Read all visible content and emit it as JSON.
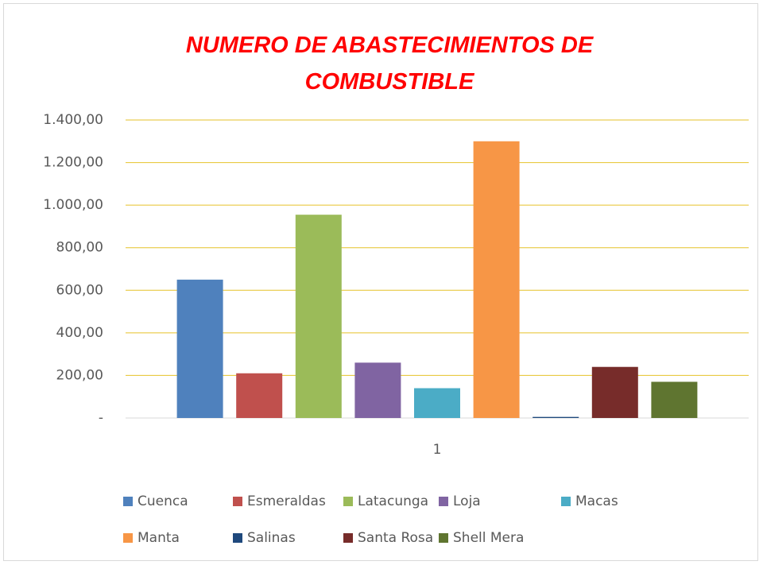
{
  "chart_data": {
    "type": "bar",
    "title": "NUMERO DE ABASTECIMIENTOS DE COMBUSTIBLE",
    "categories": [
      "1"
    ],
    "series": [
      {
        "name": "Cuenca",
        "color": "#4f81bd",
        "values": [
          650
        ]
      },
      {
        "name": "Esmeraldas",
        "color": "#c0504d",
        "values": [
          210
        ]
      },
      {
        "name": "Latacunga",
        "color": "#9bbb59",
        "values": [
          955
        ]
      },
      {
        "name": "Loja",
        "color": "#8064a2",
        "values": [
          260
        ]
      },
      {
        "name": "Macas",
        "color": "#4bacc6",
        "values": [
          140
        ]
      },
      {
        "name": "Manta",
        "color": "#f79646",
        "values": [
          1300
        ]
      },
      {
        "name": "Salinas",
        "color": "#1f497d",
        "values": [
          5
        ]
      },
      {
        "name": "Santa Rosa",
        "color": "#772c2a",
        "values": [
          240
        ]
      },
      {
        "name": "Shell Mera",
        "color": "#5f7530",
        "values": [
          170
        ]
      }
    ],
    "ylim": [
      0,
      1400
    ],
    "yticks": [
      {
        "value": 0,
        "label": "-"
      },
      {
        "value": 200,
        "label": "200,00"
      },
      {
        "value": 400,
        "label": "400,00"
      },
      {
        "value": 600,
        "label": "600,00"
      },
      {
        "value": 800,
        "label": "800,00"
      },
      {
        "value": 1000,
        "label": "1.000,00"
      },
      {
        "value": 1200,
        "label": "1.200,00"
      },
      {
        "value": 1400,
        "label": "1.400,00"
      }
    ],
    "grid": true,
    "grid_color": "#e6c229",
    "legend": "bottom"
  }
}
